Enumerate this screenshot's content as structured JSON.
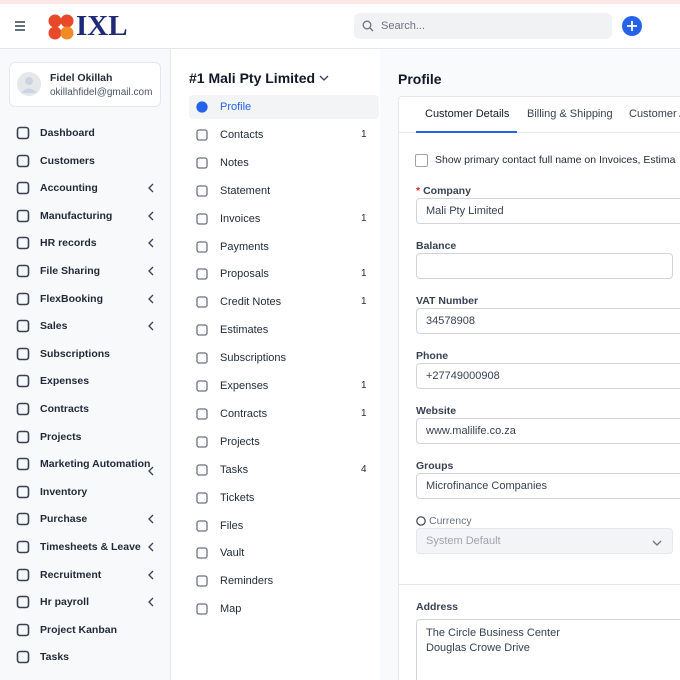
{
  "header": {
    "logo": "IXL",
    "search_placeholder": "Search..."
  },
  "user": {
    "name": "Fidel Okillah",
    "email": "okillahfidel@gmail.com"
  },
  "sidebar": [
    {
      "label": "Dashboard"
    },
    {
      "label": "Customers"
    },
    {
      "label": "Accounting",
      "expandable": true
    },
    {
      "label": "Manufacturing",
      "expandable": true
    },
    {
      "label": "HR records",
      "expandable": true
    },
    {
      "label": "File Sharing",
      "expandable": true
    },
    {
      "label": "FlexBooking",
      "expandable": true
    },
    {
      "label": "Sales",
      "expandable": true
    },
    {
      "label": "Subscriptions"
    },
    {
      "label": "Expenses"
    },
    {
      "label": "Contracts"
    },
    {
      "label": "Projects"
    },
    {
      "label": "Marketing Automation",
      "expandable": true
    },
    {
      "label": "Inventory"
    },
    {
      "label": "Purchase",
      "expandable": true
    },
    {
      "label": "Timesheets & Leave",
      "expandable": true
    },
    {
      "label": "Recruitment",
      "expandable": true
    },
    {
      "label": "Hr payroll",
      "expandable": true
    },
    {
      "label": "Project Kanban"
    },
    {
      "label": "Tasks"
    }
  ],
  "customer": {
    "title": "#1 Mali Pty Limited",
    "menu": [
      {
        "label": "Profile",
        "active": true
      },
      {
        "label": "Contacts",
        "count": 1
      },
      {
        "label": "Notes"
      },
      {
        "label": "Statement"
      },
      {
        "label": "Invoices",
        "count": 1
      },
      {
        "label": "Payments"
      },
      {
        "label": "Proposals",
        "count": 1
      },
      {
        "label": "Credit Notes",
        "count": 1
      },
      {
        "label": "Estimates"
      },
      {
        "label": "Subscriptions"
      },
      {
        "label": "Expenses",
        "count": 1
      },
      {
        "label": "Contracts",
        "count": 1
      },
      {
        "label": "Projects"
      },
      {
        "label": "Tasks",
        "count": 4
      },
      {
        "label": "Tickets"
      },
      {
        "label": "Files"
      },
      {
        "label": "Vault"
      },
      {
        "label": "Reminders"
      },
      {
        "label": "Map"
      }
    ]
  },
  "profile": {
    "title": "Profile",
    "tabs": [
      "Customer Details",
      "Billing & Shipping",
      "Customer A"
    ],
    "checkbox_label": "Show primary contact full name on Invoices, Estima",
    "fields": [
      {
        "label": "Company",
        "required": "*",
        "value": "Mali Pty Limited"
      },
      {
        "label": "Balance"
      },
      {
        "label": "VAT Number",
        "value": "34578908"
      },
      {
        "label": "Phone",
        "value": "+27749000908"
      },
      {
        "label": "Website",
        "value": "www.malilife.co.za"
      },
      {
        "label": "Groups",
        "value": "Microfinance Companies"
      },
      {
        "label": "Currency",
        "value": "System Default"
      }
    ],
    "address_label": "Address",
    "address_lines": [
      "The Circle Business Center",
      "Douglas Crowe Drive"
    ]
  }
}
